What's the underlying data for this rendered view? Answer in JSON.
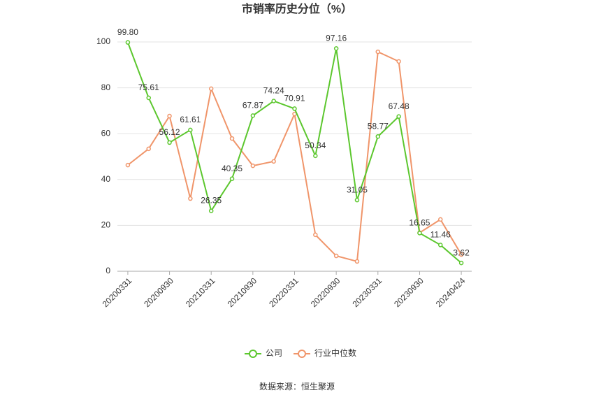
{
  "chart_data": {
    "type": "line",
    "title": "市销率历史分位（%）",
    "source": "数据来源：恒生聚源",
    "categories": [
      "20200331",
      null,
      "20200930",
      null,
      "20210331",
      null,
      "20210930",
      null,
      "20220331",
      null,
      "20220930",
      null,
      "20230331",
      null,
      "20230930",
      null,
      "20240424"
    ],
    "series": [
      {
        "name": "公司",
        "color": "#5cc72e",
        "values": [
          99.8,
          75.61,
          56.12,
          61.61,
          26.35,
          40.35,
          67.87,
          74.24,
          70.91,
          50.34,
          97.16,
          31.05,
          58.77,
          67.48,
          16.65,
          11.46,
          3.62
        ],
        "value_labels": [
          "99.80",
          "75.61",
          "56.12",
          "61.61",
          "26.35",
          "40.35",
          "67.87",
          "74.24",
          "70.91",
          "50.34",
          "97.16",
          "31.05",
          "58.77",
          "67.48",
          "16.65",
          "11.46",
          "3.62"
        ]
      },
      {
        "name": "行业中位数",
        "color": "#f0956a",
        "values": [
          46.3,
          53.4,
          67.7,
          31.7,
          79.6,
          57.9,
          46.0,
          47.9,
          68.6,
          15.9,
          6.7,
          4.3,
          95.7,
          91.5,
          16.8,
          22.6,
          7.3
        ]
      }
    ],
    "ylim": [
      0,
      100
    ],
    "yticks": [
      0,
      20,
      40,
      60,
      80,
      100
    ],
    "grid": true,
    "legend": "bottom"
  }
}
